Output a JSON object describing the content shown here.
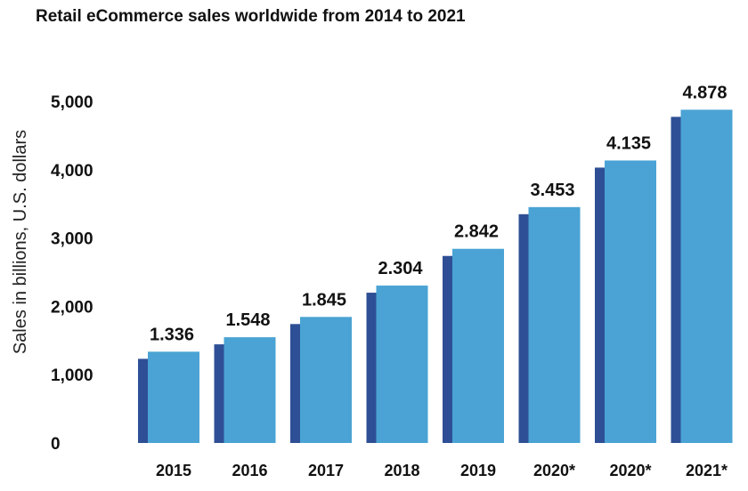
{
  "chart_data": {
    "type": "bar",
    "title": "Retail eCommerce sales worldwide from 2014 to 2021",
    "ylabel": "Sales in billions, U.S. dollars",
    "xlabel": "",
    "categories": [
      "2015",
      "2016",
      "2017",
      "2018",
      "2019",
      "2020*",
      "2020*",
      "2021*"
    ],
    "values": [
      1336,
      1548,
      1845,
      2304,
      2842,
      3453,
      4135,
      4878
    ],
    "data_labels": [
      "1.336",
      "1.548",
      "1.845",
      "2.304",
      "2.842",
      "3.453",
      "4.135",
      "4.878"
    ],
    "y_ticks": [
      {
        "value": 0,
        "label": "0"
      },
      {
        "value": 1000,
        "label": "1,000"
      },
      {
        "value": 2000,
        "label": "2,000"
      },
      {
        "value": 3000,
        "label": "3,000"
      },
      {
        "value": 4000,
        "label": "4,000"
      },
      {
        "value": 5000,
        "label": "5,000"
      }
    ],
    "ylim": [
      0,
      5000
    ],
    "grid": false,
    "legend": "none",
    "colors": {
      "bar_front": "#4aa3d4",
      "bar_shadow": "#2e4f95"
    }
  }
}
